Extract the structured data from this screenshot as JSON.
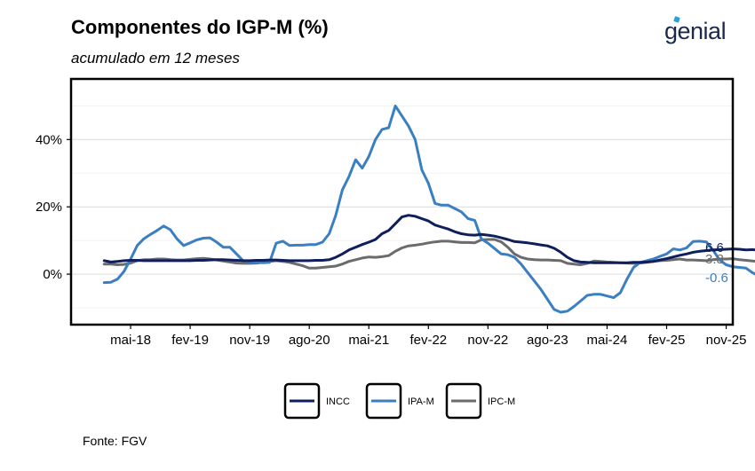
{
  "header": {
    "title": "Componentes do IGP-M (%)",
    "subtitle": "acumulado em 12 meses",
    "logo_text": "genial"
  },
  "footer": {
    "source": "Fonte: FGV"
  },
  "colors": {
    "INCC": "#0f1f5c",
    "IPA-M": "#3a7fc1",
    "IPC-M": "#6b6b6b"
  },
  "chart_data": {
    "type": "line",
    "title": "Componentes do IGP-M (%)",
    "subtitle": "acumulado em 12 meses",
    "xlabel": "",
    "ylabel": "",
    "x_start": "2018-01",
    "x_end": "2025-10",
    "xlim": [
      "2017-08",
      "2025-12"
    ],
    "ylim": [
      -15,
      58
    ],
    "y_ticks": [
      0,
      20,
      40
    ],
    "y_tick_labels": [
      "0%",
      "20%",
      "40%"
    ],
    "x_ticks": [
      "2018-05",
      "2019-02",
      "2019-11",
      "2020-08",
      "2021-05",
      "2022-02",
      "2022-11",
      "2023-08",
      "2024-05",
      "2025-02",
      "2025-11"
    ],
    "x_tick_labels": [
      "mai-18",
      "fev-19",
      "nov-19",
      "ago-20",
      "mai-21",
      "fev-22",
      "nov-22",
      "ago-23",
      "mai-24",
      "fev-25",
      "nov-25"
    ],
    "grid": true,
    "legend_position": "bottom",
    "series": [
      {
        "name": "INCC",
        "end_label": "6.6",
        "values": [
          4,
          3.6,
          3.8,
          4,
          4.1,
          4.1,
          4,
          4,
          4,
          4,
          4,
          4,
          4,
          4,
          4.1,
          4.1,
          4.2,
          4.3,
          4.3,
          4.2,
          4.1,
          4,
          4,
          4.1,
          4.1,
          4.2,
          4.2,
          4.1,
          4,
          4,
          4,
          4,
          4.1,
          4.1,
          4.3,
          5,
          6,
          7.2,
          8,
          8.8,
          9.5,
          10.3,
          12,
          13,
          15,
          17,
          17.5,
          17.2,
          16.5,
          15.8,
          14.6,
          14,
          13.4,
          12.6,
          12,
          11.7,
          11.6,
          11.8,
          11.6,
          11.3,
          10.8,
          10.3,
          9.7,
          9.5,
          9.3,
          9,
          8.7,
          8.4,
          7.7,
          6.5,
          5,
          4,
          3.6,
          3.5,
          3.4,
          3.4,
          3.4,
          3.4,
          3.4,
          3.4,
          3.5,
          3.5,
          3.6,
          3.8,
          4.2,
          4.6,
          5.1,
          5.6,
          6,
          6.5,
          6.8,
          7,
          7.2,
          7.3,
          7.4,
          7.5,
          7.4,
          7.2,
          7.3,
          7,
          6.6
        ]
      },
      {
        "name": "IPA-M",
        "end_label": "-0.6",
        "values": [
          -2.5,
          -2.4,
          -1.5,
          0.8,
          4.5,
          8.5,
          10.5,
          11.8,
          13,
          14.3,
          13.2,
          10.5,
          8.5,
          9.3,
          10.2,
          10.7,
          10.8,
          9.5,
          8,
          8,
          6,
          4,
          3.5,
          3.6,
          3.4,
          3.5,
          9.2,
          9.8,
          8.5,
          8.6,
          8.6,
          8.8,
          8.8,
          9.5,
          12,
          17.5,
          25,
          29,
          34,
          31.5,
          35,
          40,
          43,
          43.5,
          50,
          47,
          44,
          40,
          31,
          27,
          21,
          20.5,
          20.5,
          19.5,
          18.5,
          16.5,
          16,
          10.5,
          9.2,
          7.6,
          6,
          5.8,
          5,
          3,
          0.5,
          -2,
          -4.5,
          -7.5,
          -10.5,
          -11.3,
          -11,
          -9.6,
          -8,
          -6.3,
          -6,
          -6,
          -6.5,
          -7,
          -5.5,
          -1.5,
          2,
          3.5,
          4,
          4.5,
          5.3,
          6,
          7.5,
          7.2,
          7.8,
          9.7,
          9.8,
          9.6,
          7.2,
          4.2,
          2.8,
          2.2,
          2,
          1.8,
          0.4,
          -0.6
        ]
      },
      {
        "name": "IPC-M",
        "end_label": "3.8",
        "values": [
          3,
          3,
          2.8,
          2.9,
          3.3,
          4,
          4.3,
          4.3,
          4.5,
          4.5,
          4.3,
          4.2,
          4.2,
          4.4,
          4.6,
          4.7,
          4.5,
          4.2,
          3.9,
          3.6,
          3.3,
          3.2,
          3.2,
          3.3,
          3.5,
          3.8,
          4,
          3.8,
          3.5,
          3,
          2.5,
          1.8,
          1.8,
          2,
          2.2,
          2.4,
          3,
          3.8,
          4.3,
          4.8,
          5.1,
          5,
          5.2,
          5.5,
          6.8,
          7.8,
          8.4,
          8.6,
          8.9,
          9.3,
          9.6,
          9.8,
          9.8,
          9.6,
          9.4,
          9.4,
          9.3,
          10.2,
          10.3,
          10.3,
          9.6,
          8,
          6,
          5,
          4.5,
          4.3,
          4.2,
          4.2,
          4.1,
          4,
          3.2,
          3,
          2.8,
          3.2,
          3.9,
          3.8,
          3.6,
          3.5,
          3.4,
          3.3,
          3.2,
          3.3,
          3.5,
          3.8,
          4,
          4.1,
          4.3,
          4.5,
          4.2,
          4.2,
          4.1,
          4,
          4.3,
          4.5,
          4.5,
          4.6,
          4.3,
          4.1,
          3.9,
          3.8,
          3.8
        ]
      }
    ]
  }
}
